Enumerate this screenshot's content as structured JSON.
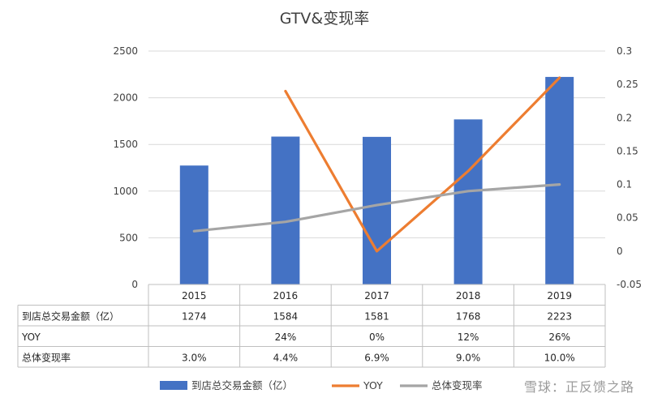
{
  "chart_data": {
    "type": "bar",
    "title": "GTV&变现率",
    "categories": [
      "2015",
      "2016",
      "2017",
      "2018",
      "2019"
    ],
    "series": [
      {
        "name": "到店总交易金额（亿）",
        "type": "bar",
        "axis": "left",
        "color": "#4472C4",
        "values": [
          1274,
          1584,
          1581,
          1768,
          2223
        ]
      },
      {
        "name": "YOY",
        "type": "line",
        "axis": "right",
        "color": "#ED7D31",
        "values": [
          null,
          0.24,
          0.0,
          0.12,
          0.26
        ]
      },
      {
        "name": "总体变现率",
        "type": "line",
        "axis": "right",
        "color": "#A5A5A5",
        "values": [
          0.03,
          0.044,
          0.069,
          0.09,
          0.1
        ]
      }
    ],
    "y_left": {
      "ylim": [
        0,
        2500
      ],
      "ticks": [
        "0",
        "500",
        "1000",
        "1500",
        "2000",
        "2500"
      ]
    },
    "y_right": {
      "ylim": [
        -0.05,
        0.3
      ],
      "ticks": [
        "-0.05",
        "0",
        "0.05",
        "0.1",
        "0.15",
        "0.2",
        "0.25",
        "0.3"
      ]
    },
    "grid": true,
    "legend_position": "bottom",
    "table": {
      "rows": [
        {
          "label": "到店总交易金额（亿）",
          "cells": [
            "1274",
            "1584",
            "1581",
            "1768",
            "2223"
          ]
        },
        {
          "label": "YOY",
          "cells": [
            "",
            "24%",
            "0%",
            "12%",
            "26%"
          ]
        },
        {
          "label": "总体变现率",
          "cells": [
            "3.0%",
            "4.4%",
            "6.9%",
            "9.0%",
            "10.0%"
          ]
        }
      ]
    }
  },
  "watermark": "雪球：正反馈之路"
}
